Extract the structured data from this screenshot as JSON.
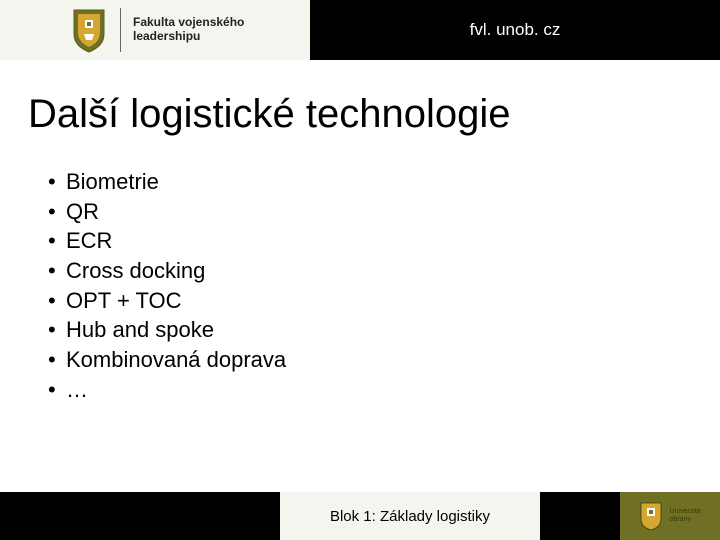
{
  "colors": {
    "bar": "#000000",
    "panel": "#f5f5f0",
    "olive": "#707025",
    "olive_dark": "#5a5a1f",
    "gold": "#d4a830",
    "text": "#000000",
    "white": "#ffffff"
  },
  "header": {
    "faculty_line1": "Fakulta vojenského",
    "faculty_line2": "leadershipu",
    "url": "fvl. unob. cz"
  },
  "title": "Další logistické technologie",
  "bullets": [
    "Biometrie",
    "QR",
    "ECR",
    "Cross docking",
    "OPT + TOC",
    "Hub and spoke",
    "Kombinovaná doprava",
    "…"
  ],
  "footer": {
    "center": "Blok 1: Základy logistiky",
    "uni_line1": "Univerzita",
    "uni_line2": "obrany"
  }
}
